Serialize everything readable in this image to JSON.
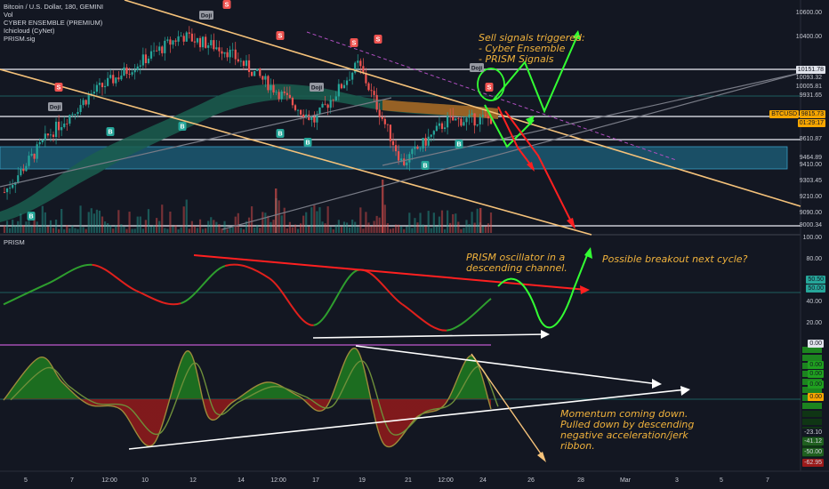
{
  "header": {
    "symbol_line": "Bitcoin / U.S. Dollar, 180, GEMINI",
    "indicators": [
      "Vol",
      "CYBER ENSEMBLE (PREMIUM)",
      "Ichicloud (CyNet)",
      "PRISM.sig"
    ]
  },
  "lower_pane": {
    "title": "PRISM"
  },
  "annotations": {
    "sell_signals": "Sell signals triggered:\n- Cyber Ensemble\n- PRISM Signals",
    "prism_channel": "PRISM oscillator in a\ndescending channel.",
    "breakout": "Possible breakout next cycle?",
    "momentum": "Momentum coming down.\nPulled down by descending\nnegative acceleration/jerk\nribbon."
  },
  "price_axis": {
    "ticks": [
      "10600.00",
      "10400.00",
      "10093.32",
      "10005.81",
      "9931.65",
      "9610.87",
      "9464.89",
      "9410.00",
      "9303.45",
      "9210.00",
      "9090.00",
      "9000.34"
    ],
    "highlighted": [
      {
        "label": "10151.78",
        "color": "#e0e3eb"
      },
      {
        "label": "BTCUSD",
        "color": "#f7a600"
      },
      {
        "label": "9815.73",
        "color": "#f7a600"
      },
      {
        "label": "01:29:17",
        "color": "#f7a600"
      }
    ]
  },
  "osc_axis": {
    "ticks": [
      "100.00",
      "80.00",
      "60.00",
      "40.00",
      "20.00"
    ],
    "highlighted": [
      {
        "label": "50.50",
        "color": "#26a69a"
      },
      {
        "label": "50.00",
        "color": "#26a69a"
      }
    ]
  },
  "momentum_axis": {
    "ticks": [
      "0.00",
      "0.00",
      "0.00",
      "0.00",
      "0.00",
      "-23.10",
      "-41.12",
      "-50.00",
      "-62.95"
    ]
  },
  "time_axis": {
    "labels": [
      "5",
      "7",
      "12:00",
      "10",
      "12",
      "14",
      "12:00",
      "17",
      "19",
      "21",
      "12:00",
      "24",
      "26",
      "28",
      "Mar",
      "3",
      "5",
      "7"
    ]
  },
  "signal_labels": {
    "buy": "B",
    "sell": "S",
    "doji": "Doji"
  },
  "colors": {
    "background": "#131722",
    "bull": "#26a69a",
    "bear": "#ef5350",
    "channel": "#f5c27a",
    "osc_green": "#2e9e2e",
    "osc_red": "#e0201c",
    "signal_green": "#33ff33",
    "signal_red": "#ff2020"
  },
  "chart_data": [
    {
      "type": "line",
      "pane": "price",
      "title": "Bitcoin / U.S. Dollar, 180, GEMINI",
      "series": [
        {
          "name": "Bitcoin / U.S. Dollar",
          "x": [
            "5",
            "7",
            "12:00",
            "10",
            "12",
            "14",
            "12:00",
            "17",
            "19",
            "21",
            "12:00",
            "24"
          ],
          "values": [
            9300,
            9700,
            10000,
            10200,
            10400,
            10300,
            10050,
            9800,
            10200,
            9500,
            9800,
            9815.73
          ]
        }
      ],
      "ylim": [
        9000,
        10650
      ]
    },
    {
      "type": "line",
      "pane": "oscillator",
      "title": "PRISM",
      "series": [
        {
          "name": "PRISM",
          "x": [
            "5",
            "7",
            "12:00",
            "10",
            "12",
            "14",
            "12:00",
            "17",
            "19",
            "21",
            "12:00",
            "24"
          ],
          "values": [
            45,
            65,
            83,
            58,
            46,
            82,
            70,
            25,
            78,
            45,
            20,
            50.5
          ]
        }
      ],
      "ylim": [
        0,
        100
      ]
    }
  ]
}
